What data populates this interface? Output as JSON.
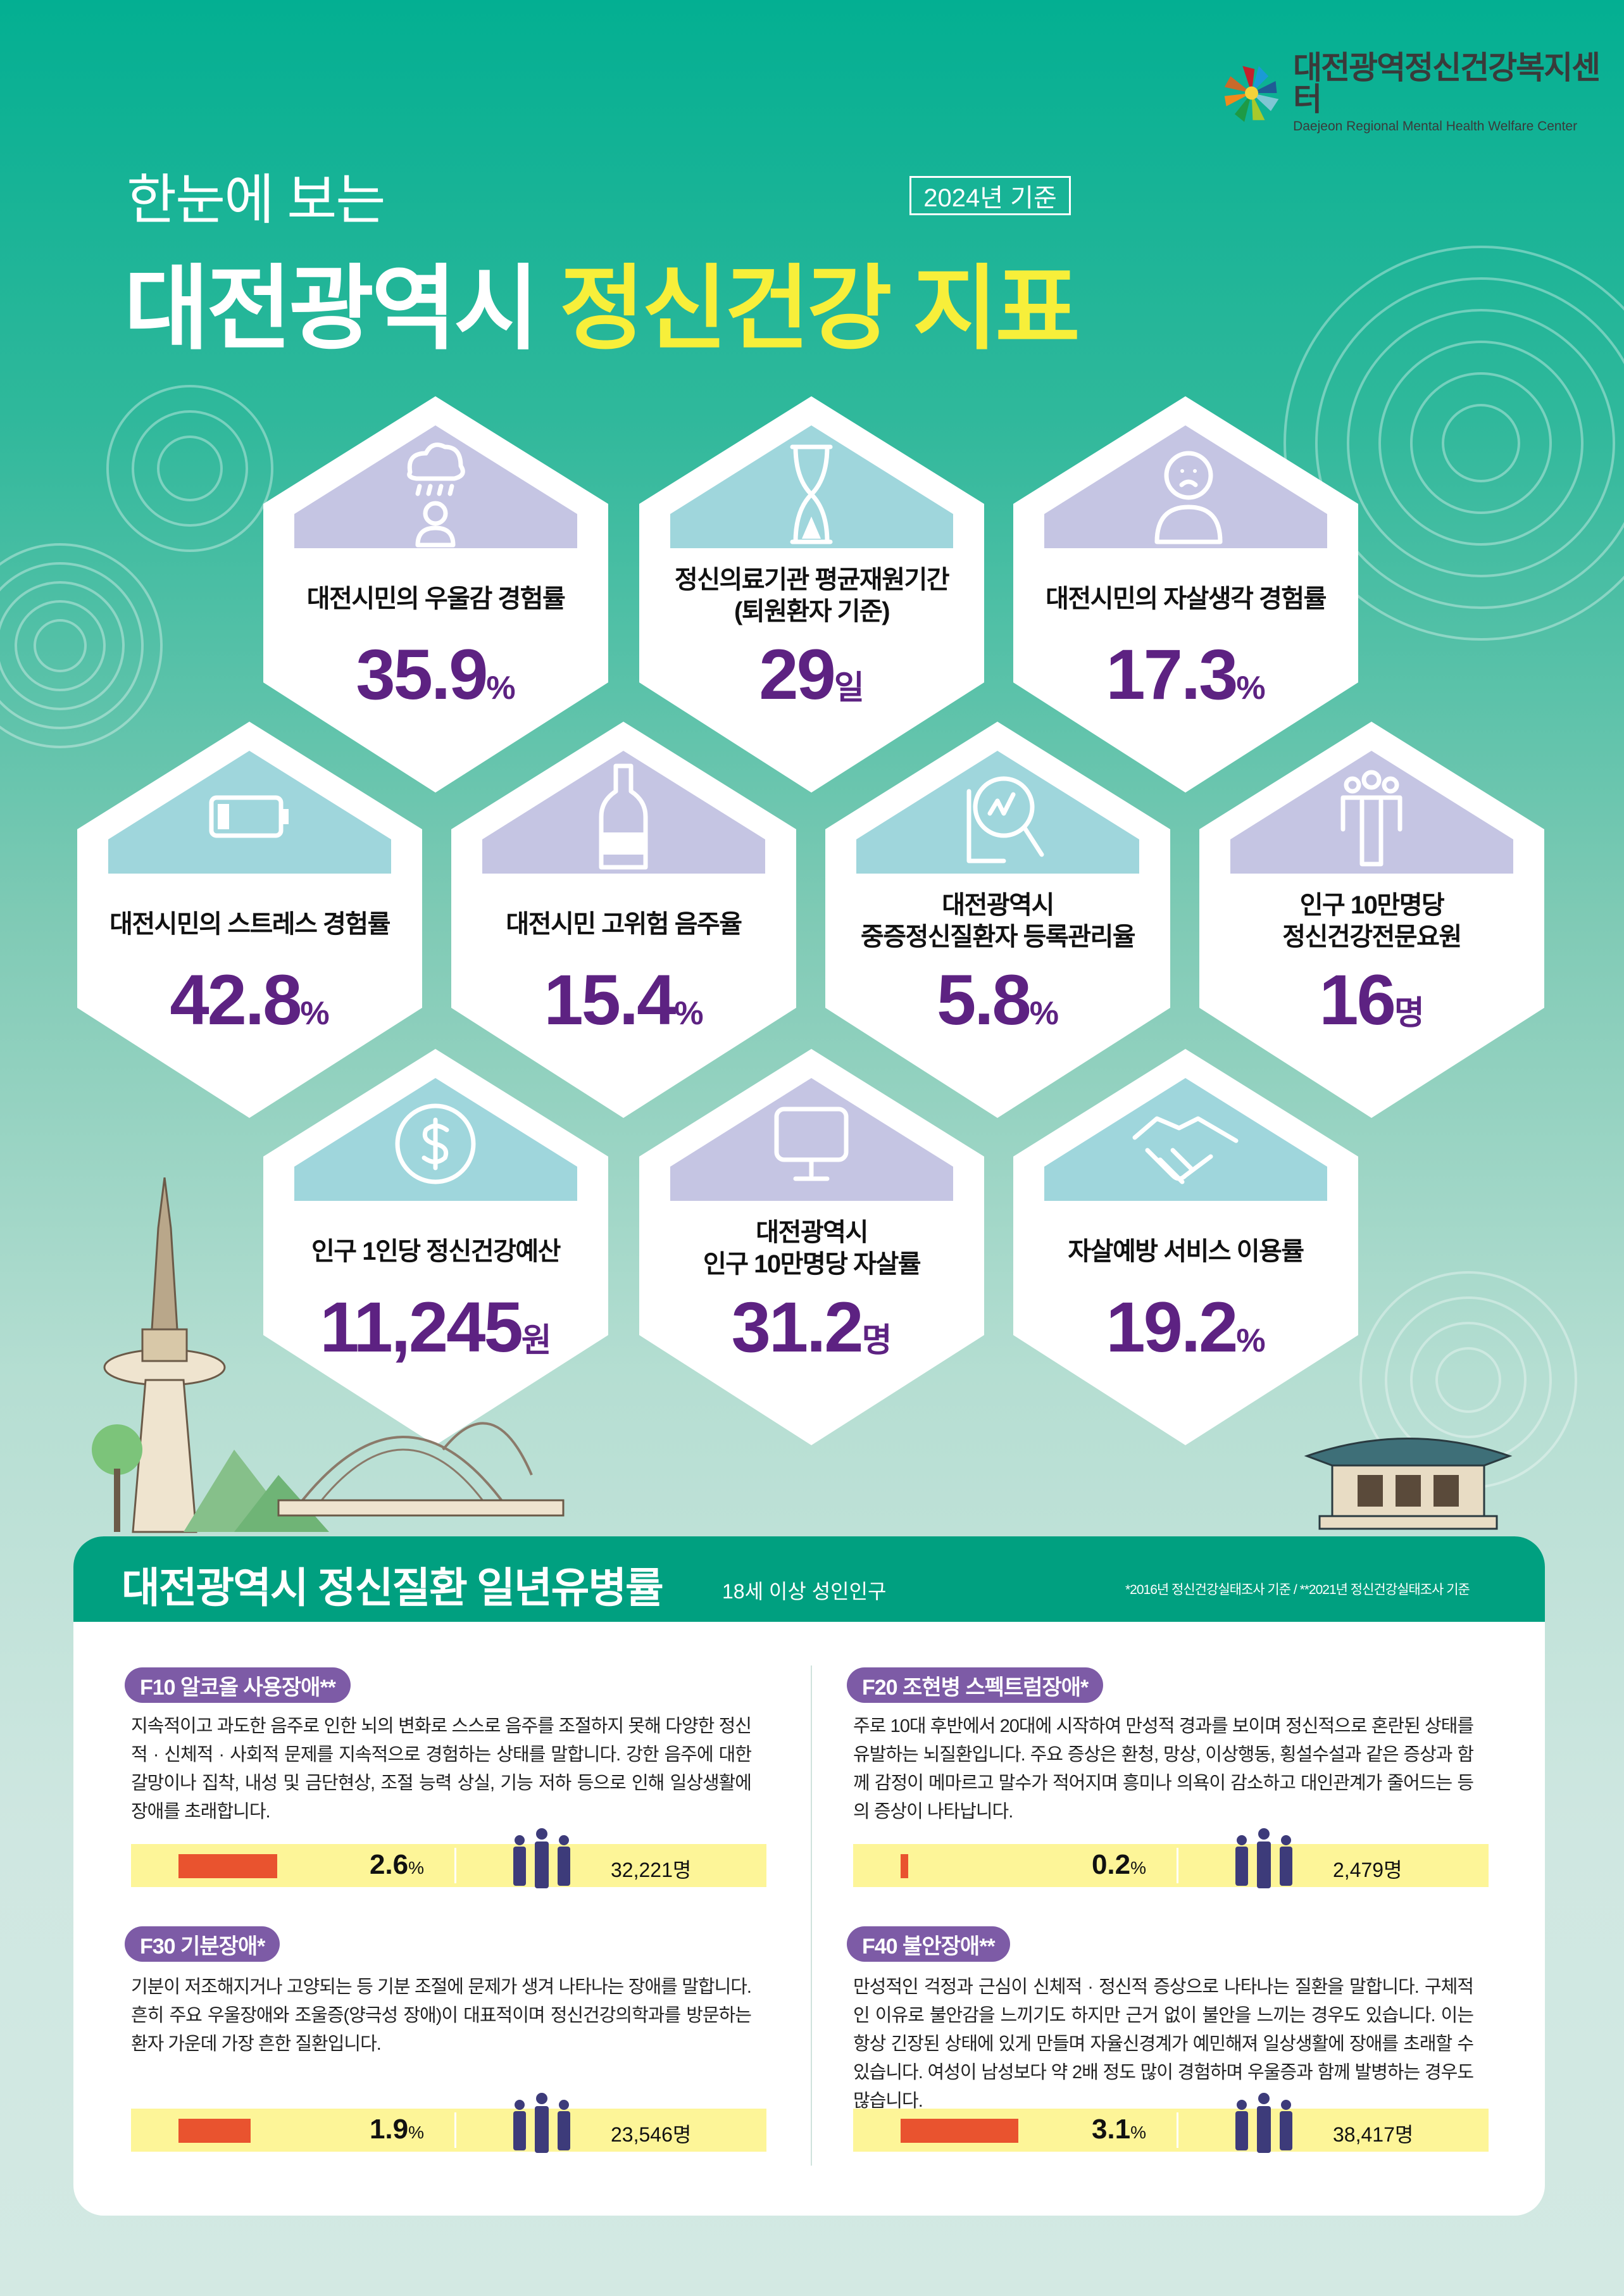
{
  "logo": {
    "name_ko": "대전광역정신건강복지센터",
    "name_en": "Daejeon Regional Mental Health Welfare Center"
  },
  "header": {
    "subtitle": "한눈에 보는",
    "title_white": "대전광역시",
    "title_highlight": "정신건강 지표",
    "year_badge": "2024년 기준"
  },
  "colors": {
    "teal": "#03af92",
    "purple": "#5d2282",
    "yellow": "#f7ef3a",
    "lavender": "#c5c5e3",
    "cyan": "#9fd6dc",
    "orange": "#e9532f",
    "pill": "#7d5ba6"
  },
  "indicators": [
    {
      "icon": "rain-cloud-person-icon",
      "tone": "lavender",
      "label": [
        "대전시민의 우울감 경험률"
      ],
      "value": "35.9",
      "unit": "%"
    },
    {
      "icon": "hourglass-icon",
      "tone": "cyan",
      "label": [
        "정신의료기관 평균재원기간",
        "(퇴원환자 기준)"
      ],
      "value": "29",
      "unit": "일"
    },
    {
      "icon": "sad-person-icon",
      "tone": "lavender",
      "label": [
        "대전시민의 자살생각 경험률"
      ],
      "value": "17.3",
      "unit": "%"
    },
    {
      "icon": "low-battery-icon",
      "tone": "cyan",
      "label": [
        "대전시민의 스트레스 경험률"
      ],
      "value": "42.8",
      "unit": "%"
    },
    {
      "icon": "bottle-icon",
      "tone": "lavender",
      "label": [
        "대전시민 고위험 음주율"
      ],
      "value": "15.4",
      "unit": "%"
    },
    {
      "icon": "magnifier-chart-icon",
      "tone": "cyan",
      "label": [
        "대전광역시",
        "중증정신질환자 등록관리율"
      ],
      "value": "5.8",
      "unit": "%"
    },
    {
      "icon": "people-group-icon",
      "tone": "lavender",
      "label": [
        "인구 10만명당",
        "정신건강전문요원"
      ],
      "value": "16",
      "unit": "명"
    },
    {
      "icon": "dollar-coin-icon",
      "tone": "cyan",
      "label": [
        "인구 1인당 정신건강예산"
      ],
      "value": "11,245",
      "unit": "원"
    },
    {
      "icon": "monitor-icon",
      "tone": "lavender",
      "label": [
        "대전광역시",
        "인구 10만명당 자살률"
      ],
      "value": "31.2",
      "unit": "명"
    },
    {
      "icon": "handshake-icon",
      "tone": "cyan",
      "label": [
        "자살예방 서비스 이용률"
      ],
      "value": "19.2",
      "unit": "%"
    }
  ],
  "prevalence": {
    "title": "대전광역시 정신질환 일년유병률",
    "subtitle": "18세 이상 성인인구",
    "note": "*2016년 정신건강실태조사 기준 / **2021년 정신건강실태조사 기준",
    "items": [
      {
        "name": "F10 알코올 사용장애**",
        "desc": "지속적이고 과도한 음주로 인한 뇌의 변화로 스스로 음주를 조절하지 못해 다양한 정신적 · 신체적 · 사회적 문제를 지속적으로 경험하는 상태를 말합니다. 강한 음주에 대한 갈망이나 집착, 내성 및 금단현상, 조절 능력 상실, 기능 저하 등으로 인해 일상생활에 장애를 초래합니다.",
        "percent": 2.6,
        "percent_label": "2.6",
        "count": "32,221명"
      },
      {
        "name": "F20 조현병 스펙트럼장애*",
        "desc": "주로 10대 후반에서 20대에 시작하여 만성적 경과를 보이며 정신적으로 혼란된 상태를 유발하는 뇌질환입니다. 주요 증상은 환청, 망상, 이상행동, 횡설수설과 같은 증상과 함께 감정이 메마르고 말수가 적어지며 흥미나 의욕이 감소하고 대인관계가 줄어드는 등의 증상이 나타납니다.",
        "percent": 0.2,
        "percent_label": "0.2",
        "count": "2,479명"
      },
      {
        "name": "F30 기분장애*",
        "desc": "기분이 저조해지거나 고양되는 등 기분 조절에 문제가 생겨 나타나는 장애를 말합니다. 흔히 주요 우울장애와 조울증(양극성 장애)이 대표적이며 정신건강의학과를 방문하는 환자 가운데 가장 흔한 질환입니다.",
        "percent": 1.9,
        "percent_label": "1.9",
        "count": "23,546명"
      },
      {
        "name": "F40 불안장애**",
        "desc": "만성적인 걱정과 근심이 신체적 · 정신적 증상으로 나타나는 질환을 말합니다. 구체적인 이유로 불안감을 느끼기도 하지만 근거 없이 불안을 느끼는 경우도 있습니다. 이는 항상 긴장된 상태에 있게 만들며 자율신경계가 예민해져 일상생활에 장애를 초래할 수 있습니다. 여성이 남성보다 약 2배 정도 많이 경험하며 우울증과 함께 발병하는 경우도 많습니다.",
        "percent": 3.1,
        "percent_label": "3.1",
        "count": "38,417명"
      }
    ],
    "percent_sign": "%"
  }
}
